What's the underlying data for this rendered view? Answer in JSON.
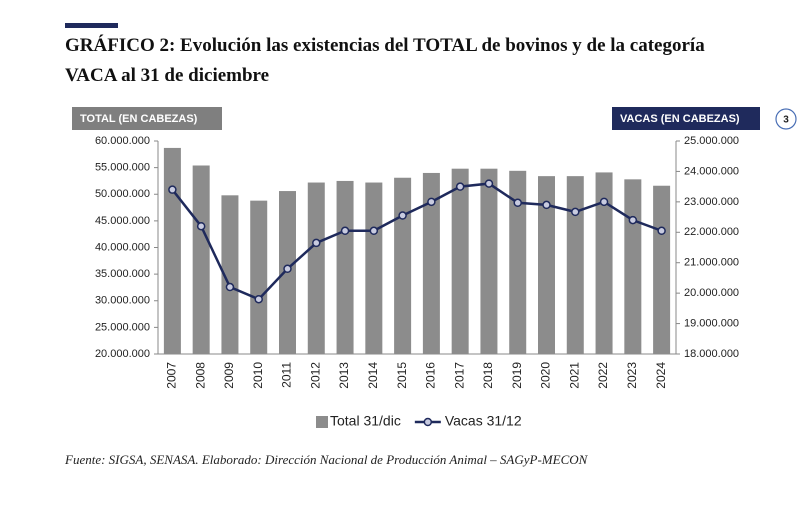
{
  "page": {
    "number": "3"
  },
  "chart_data": {
    "type": "bar-line",
    "title_lines": [
      "GRÁFICO 2: Evolución las existencias del TOTAL de bovinos y de la categoría",
      "VACA al 31 de diciembre"
    ],
    "ylabel": "TOTAL (EN CABEZAS)",
    "y2label": "VACAS (EN CABEZAS)",
    "source": "Fuente: SIGSA, SENASA. Elaborado: Dirección Nacional de Producción Animal – SAGyP-MECON",
    "categories": [
      "2007",
      "2008",
      "2009",
      "2010",
      "2011",
      "2012",
      "2013",
      "2014",
      "2015",
      "2016",
      "2017",
      "2018",
      "2019",
      "2020",
      "2021",
      "2022",
      "2023",
      "2024"
    ],
    "series": [
      {
        "name": "Total 31/dic",
        "type": "bar",
        "color": "#8c8c8c",
        "values": [
          58700000,
          55400000,
          49800000,
          48800000,
          50600000,
          52200000,
          52500000,
          52200000,
          53100000,
          54000000,
          54800000,
          54800000,
          54400000,
          53400000,
          53400000,
          54100000,
          52800000,
          51600000
        ]
      },
      {
        "name": "Vacas 31/12",
        "type": "line",
        "axis": "y2",
        "color": "#1f2a5c",
        "values": [
          23400000,
          22200000,
          20200000,
          19800000,
          20800000,
          21650000,
          22050000,
          22050000,
          22550000,
          23000000,
          23500000,
          23600000,
          22970000,
          22900000,
          22670000,
          23000000,
          22400000,
          22050000
        ]
      }
    ],
    "ylim": [
      20000000,
      60000000
    ],
    "yticks": [
      {
        "value": 20000000,
        "label": "20.000.000"
      },
      {
        "value": 25000000,
        "label": "25.000.000"
      },
      {
        "value": 30000000,
        "label": "30.000.000"
      },
      {
        "value": 35000000,
        "label": "35.000.000"
      },
      {
        "value": 40000000,
        "label": "40.000.000"
      },
      {
        "value": 45000000,
        "label": "45.000.000"
      },
      {
        "value": 50000000,
        "label": "50.000.000"
      },
      {
        "value": 55000000,
        "label": "55.000.000"
      },
      {
        "value": 60000000,
        "label": "60.000.000"
      }
    ],
    "y2lim": [
      18000000,
      25000000
    ],
    "y2ticks": [
      {
        "value": 18000000,
        "label": "18.000.000"
      },
      {
        "value": 19000000,
        "label": "19.000.000"
      },
      {
        "value": 20000000,
        "label": "20.000.000"
      },
      {
        "value": 21000000,
        "label": "21.000.000"
      },
      {
        "value": 22000000,
        "label": "22.000.000"
      },
      {
        "value": 23000000,
        "label": "23.000.000"
      },
      {
        "value": 24000000,
        "label": "24.000.000"
      },
      {
        "value": 25000000,
        "label": "25.000.000"
      }
    ],
    "legend": "bottom"
  }
}
